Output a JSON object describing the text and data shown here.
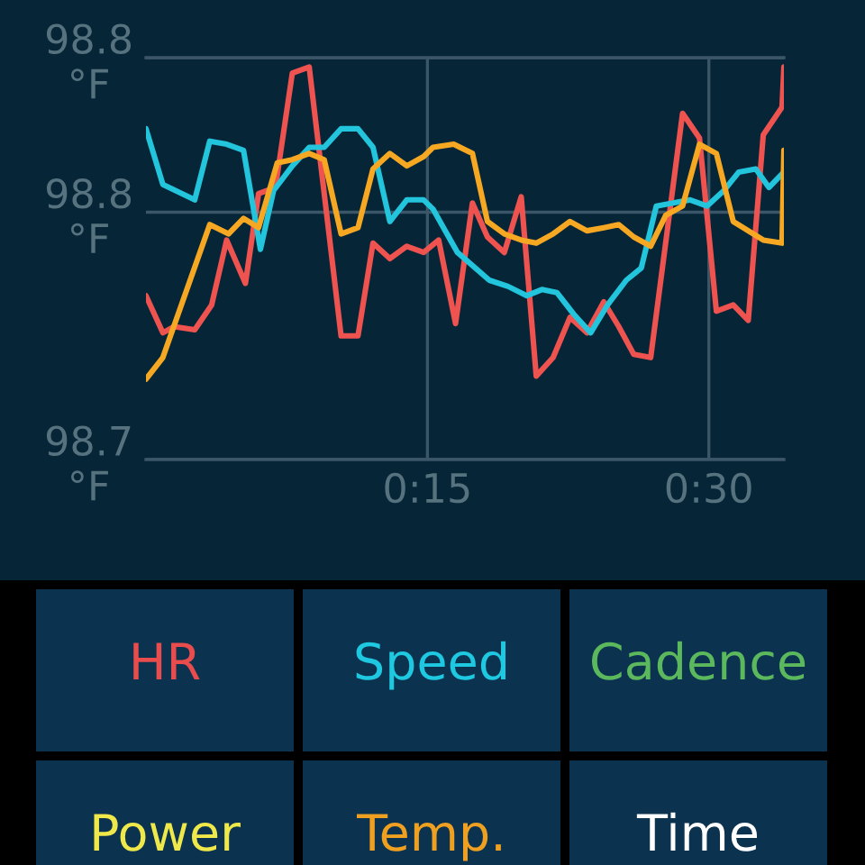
{
  "chart_data": [
    {
      "type": "line",
      "xlim": [
        0,
        34
      ],
      "xticks": [
        {
          "value": 15,
          "label": "0:15"
        },
        {
          "value": 30,
          "label": "0:30"
        }
      ],
      "ylim": [
        98.7,
        98.83
      ],
      "yticks": [
        {
          "value": 98.7,
          "label": "98.7\n°F"
        },
        {
          "value": 98.78,
          "label": "98.8\n°F"
        },
        {
          "value": 98.83,
          "label": "98.8\n°F"
        }
      ],
      "grid": true,
      "series": [
        {
          "color": "#ef5350",
          "x": [
            0,
            0.9,
            1.5,
            2.6,
            3.5,
            4.3,
            5.3,
            6.0,
            6.9,
            7.8,
            8.7,
            10.4,
            11.3,
            12.1,
            13.0,
            13.9,
            14.8,
            15.6,
            16.5,
            17.4,
            18.2,
            19.1,
            20.0,
            20.8,
            21.7,
            22.6,
            23.5,
            24.4,
            25.2,
            26.0,
            26.9,
            28.6,
            29.5,
            30.4,
            31.3,
            32.1,
            32.9,
            33.9,
            34
          ],
          "values": [
            98.753,
            98.741,
            98.743,
            98.742,
            98.75,
            98.771,
            98.757,
            98.786,
            98.788,
            98.825,
            98.827,
            98.74,
            98.74,
            98.77,
            98.765,
            98.769,
            98.767,
            98.771,
            98.744,
            98.783,
            98.772,
            98.767,
            98.785,
            98.727,
            98.733,
            98.746,
            98.741,
            98.751,
            98.743,
            98.734,
            98.733,
            98.812,
            98.804,
            98.748,
            98.75,
            98.745,
            98.805,
            98.814,
            98.827
          ]
        },
        {
          "color": "#22c5dc",
          "x": [
            0,
            0.9,
            2.6,
            3.4,
            4.3,
            5.2,
            6.1,
            6.8,
            7.8,
            8.7,
            9.5,
            10.4,
            11.3,
            12.1,
            13.0,
            13.9,
            14.8,
            15.3,
            16.6,
            18.3,
            19.3,
            20.3,
            21.1,
            21.9,
            22.8,
            23.7,
            24.6,
            25.6,
            26.4,
            27.2,
            28.1,
            29.0,
            29.9,
            30.8,
            31.6,
            32.5,
            33.2,
            34
          ],
          "values": [
            98.807,
            98.789,
            98.784,
            98.803,
            98.802,
            98.8,
            98.768,
            98.787,
            98.795,
            98.801,
            98.801,
            98.807,
            98.807,
            98.801,
            98.777,
            98.784,
            98.784,
            98.781,
            98.767,
            98.758,
            98.756,
            98.753,
            98.755,
            98.754,
            98.747,
            98.741,
            98.75,
            98.758,
            98.762,
            98.782,
            98.783,
            98.784,
            98.782,
            98.787,
            98.793,
            98.794,
            98.788,
            98.793
          ]
        },
        {
          "color": "#f7a823",
          "x": [
            0,
            0.9,
            3.4,
            4.4,
            5.2,
            6.0,
            7.0,
            7.8,
            8.7,
            9.5,
            10.4,
            11.3,
            12.1,
            13.0,
            13.9,
            14.8,
            15.3,
            16.4,
            17.4,
            18.2,
            19.1,
            20.0,
            20.8,
            21.7,
            22.6,
            23.5,
            24.4,
            25.2,
            26.0,
            26.9,
            27.7,
            28.6,
            29.5,
            30.4,
            31.3,
            32.1,
            32.9,
            33.9,
            34
          ],
          "values": [
            98.726,
            98.733,
            98.776,
            98.773,
            98.778,
            98.775,
            98.796,
            98.797,
            98.799,
            98.797,
            98.773,
            98.775,
            98.794,
            98.799,
            98.795,
            98.798,
            98.801,
            98.802,
            98.799,
            98.777,
            98.773,
            98.771,
            98.77,
            98.773,
            98.777,
            98.774,
            98.775,
            98.776,
            98.772,
            98.769,
            98.779,
            98.782,
            98.802,
            98.799,
            98.777,
            98.774,
            98.771,
            98.77,
            98.8
          ]
        }
      ]
    },
    {
      "type": "other",
      "categories": [
        "HR",
        "Speed",
        "Cadence",
        "Power",
        "Temp.",
        "Time"
      ],
      "colors": [
        "#e84c4c",
        "#1ec8e0",
        "#5cb85c",
        "#eee84a",
        "#f0a020",
        "#ffffff"
      ]
    }
  ]
}
